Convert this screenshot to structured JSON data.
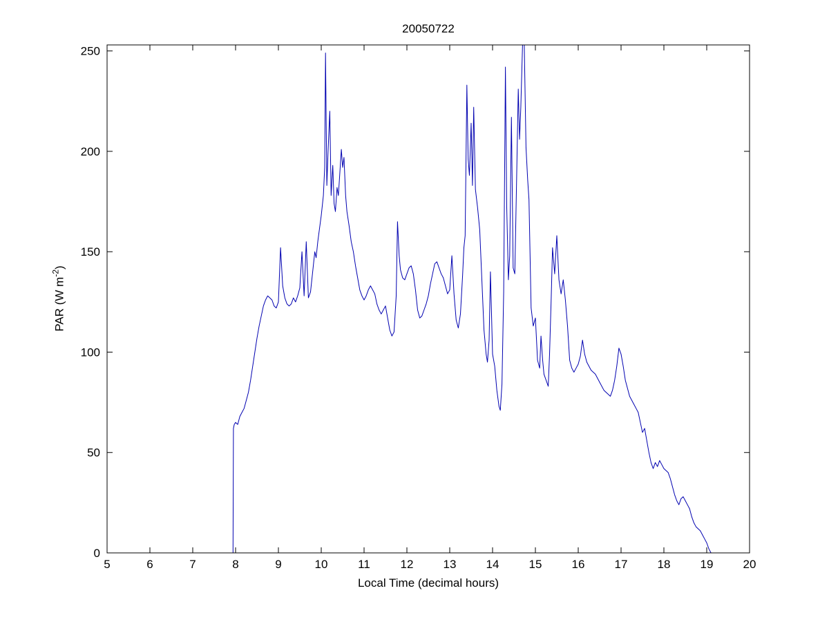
{
  "chart_data": {
    "type": "line",
    "title": "20050722",
    "xlabel": "Local Time (decimal hours)",
    "ylabel": "PAR (W m-2)",
    "ylabel_parts": {
      "main": "PAR (W m",
      "sup": "-2",
      "close": ")"
    },
    "xlim": [
      5,
      20
    ],
    "ylim": [
      0,
      253
    ],
    "xticks": [
      5,
      6,
      7,
      8,
      9,
      10,
      11,
      12,
      13,
      14,
      15,
      16,
      17,
      18,
      19,
      20
    ],
    "yticks": [
      0,
      50,
      100,
      150,
      200,
      250
    ],
    "grid": false,
    "legend": "none",
    "line_color": "#0000b0",
    "axis_color": "#000000",
    "series_name": "PAR",
    "points": [
      [
        6.25,
        0
      ],
      [
        6.4,
        0
      ],
      [
        6.6,
        0
      ],
      [
        6.8,
        0
      ],
      [
        7.0,
        0
      ],
      [
        7.2,
        0
      ],
      [
        7.4,
        0
      ],
      [
        7.6,
        0
      ],
      [
        7.8,
        0
      ],
      [
        7.9,
        0
      ],
      [
        7.94,
        0
      ],
      [
        7.95,
        62
      ],
      [
        7.97,
        64
      ],
      [
        8.0,
        65
      ],
      [
        8.05,
        64
      ],
      [
        8.1,
        68
      ],
      [
        8.15,
        70
      ],
      [
        8.2,
        72
      ],
      [
        8.25,
        76
      ],
      [
        8.3,
        80
      ],
      [
        8.35,
        86
      ],
      [
        8.4,
        93
      ],
      [
        8.45,
        100
      ],
      [
        8.5,
        107
      ],
      [
        8.55,
        113
      ],
      [
        8.6,
        118
      ],
      [
        8.65,
        123
      ],
      [
        8.7,
        126
      ],
      [
        8.75,
        128
      ],
      [
        8.8,
        127
      ],
      [
        8.85,
        126
      ],
      [
        8.9,
        123
      ],
      [
        8.95,
        122
      ],
      [
        9.0,
        125
      ],
      [
        9.05,
        152
      ],
      [
        9.1,
        133
      ],
      [
        9.15,
        127
      ],
      [
        9.2,
        124
      ],
      [
        9.25,
        123
      ],
      [
        9.3,
        124
      ],
      [
        9.35,
        127
      ],
      [
        9.4,
        125
      ],
      [
        9.45,
        128
      ],
      [
        9.5,
        132
      ],
      [
        9.55,
        150
      ],
      [
        9.6,
        128
      ],
      [
        9.65,
        155
      ],
      [
        9.7,
        127
      ],
      [
        9.75,
        130
      ],
      [
        9.8,
        140
      ],
      [
        9.85,
        150
      ],
      [
        9.88,
        147
      ],
      [
        9.92,
        155
      ],
      [
        9.95,
        160
      ],
      [
        10.0,
        168
      ],
      [
        10.05,
        178
      ],
      [
        10.08,
        192
      ],
      [
        10.1,
        249
      ],
      [
        10.13,
        183
      ],
      [
        10.16,
        200
      ],
      [
        10.2,
        220
      ],
      [
        10.23,
        178
      ],
      [
        10.27,
        193
      ],
      [
        10.3,
        174
      ],
      [
        10.33,
        170
      ],
      [
        10.37,
        182
      ],
      [
        10.4,
        178
      ],
      [
        10.43,
        188
      ],
      [
        10.47,
        201
      ],
      [
        10.5,
        192
      ],
      [
        10.53,
        197
      ],
      [
        10.57,
        178
      ],
      [
        10.6,
        170
      ],
      [
        10.65,
        163
      ],
      [
        10.7,
        155
      ],
      [
        10.75,
        150
      ],
      [
        10.8,
        143
      ],
      [
        10.85,
        137
      ],
      [
        10.9,
        131
      ],
      [
        10.95,
        128
      ],
      [
        11.0,
        126
      ],
      [
        11.05,
        128
      ],
      [
        11.1,
        131
      ],
      [
        11.15,
        133
      ],
      [
        11.2,
        131
      ],
      [
        11.25,
        129
      ],
      [
        11.3,
        124
      ],
      [
        11.35,
        121
      ],
      [
        11.4,
        119
      ],
      [
        11.45,
        121
      ],
      [
        11.5,
        123
      ],
      [
        11.55,
        117
      ],
      [
        11.6,
        111
      ],
      [
        11.65,
        108
      ],
      [
        11.7,
        110
      ],
      [
        11.75,
        128
      ],
      [
        11.78,
        165
      ],
      [
        11.82,
        148
      ],
      [
        11.85,
        141
      ],
      [
        11.9,
        137
      ],
      [
        11.95,
        136
      ],
      [
        12.0,
        139
      ],
      [
        12.05,
        142
      ],
      [
        12.1,
        143
      ],
      [
        12.15,
        139
      ],
      [
        12.2,
        131
      ],
      [
        12.25,
        121
      ],
      [
        12.3,
        117
      ],
      [
        12.35,
        118
      ],
      [
        12.4,
        121
      ],
      [
        12.45,
        124
      ],
      [
        12.5,
        128
      ],
      [
        12.55,
        134
      ],
      [
        12.6,
        139
      ],
      [
        12.65,
        144
      ],
      [
        12.7,
        145
      ],
      [
        12.75,
        142
      ],
      [
        12.8,
        139
      ],
      [
        12.85,
        137
      ],
      [
        12.9,
        133
      ],
      [
        12.95,
        129
      ],
      [
        13.0,
        131
      ],
      [
        13.05,
        148
      ],
      [
        13.1,
        129
      ],
      [
        13.15,
        116
      ],
      [
        13.2,
        112
      ],
      [
        13.25,
        119
      ],
      [
        13.3,
        138
      ],
      [
        13.33,
        152
      ],
      [
        13.36,
        158
      ],
      [
        13.4,
        233
      ],
      [
        13.43,
        196
      ],
      [
        13.46,
        188
      ],
      [
        13.5,
        214
      ],
      [
        13.53,
        183
      ],
      [
        13.56,
        222
      ],
      [
        13.6,
        181
      ],
      [
        13.65,
        172
      ],
      [
        13.7,
        161
      ],
      [
        13.75,
        136
      ],
      [
        13.8,
        111
      ],
      [
        13.85,
        99
      ],
      [
        13.88,
        95
      ],
      [
        13.92,
        106
      ],
      [
        13.95,
        140
      ],
      [
        14.0,
        99
      ],
      [
        14.05,
        93
      ],
      [
        14.1,
        81
      ],
      [
        14.15,
        73
      ],
      [
        14.18,
        71
      ],
      [
        14.22,
        84
      ],
      [
        14.26,
        130
      ],
      [
        14.3,
        242
      ],
      [
        14.33,
        172
      ],
      [
        14.37,
        136
      ],
      [
        14.4,
        148
      ],
      [
        14.44,
        217
      ],
      [
        14.48,
        142
      ],
      [
        14.52,
        139
      ],
      [
        14.56,
        184
      ],
      [
        14.6,
        231
      ],
      [
        14.63,
        206
      ],
      [
        14.66,
        222
      ],
      [
        14.7,
        256
      ],
      [
        14.74,
        256
      ],
      [
        14.78,
        202
      ],
      [
        14.82,
        186
      ],
      [
        14.85,
        176
      ],
      [
        14.9,
        122
      ],
      [
        14.95,
        113
      ],
      [
        15.0,
        117
      ],
      [
        15.05,
        96
      ],
      [
        15.1,
        92
      ],
      [
        15.13,
        108
      ],
      [
        15.17,
        96
      ],
      [
        15.2,
        89
      ],
      [
        15.25,
        86
      ],
      [
        15.3,
        83
      ],
      [
        15.33,
        99
      ],
      [
        15.37,
        127
      ],
      [
        15.4,
        152
      ],
      [
        15.45,
        139
      ],
      [
        15.5,
        158
      ],
      [
        15.55,
        136
      ],
      [
        15.6,
        129
      ],
      [
        15.65,
        136
      ],
      [
        15.7,
        126
      ],
      [
        15.75,
        113
      ],
      [
        15.8,
        96
      ],
      [
        15.85,
        92
      ],
      [
        15.9,
        90
      ],
      [
        15.95,
        92
      ],
      [
        16.0,
        94
      ],
      [
        16.05,
        98
      ],
      [
        16.1,
        106
      ],
      [
        16.15,
        99
      ],
      [
        16.2,
        95
      ],
      [
        16.3,
        91
      ],
      [
        16.4,
        89
      ],
      [
        16.5,
        85
      ],
      [
        16.6,
        81
      ],
      [
        16.7,
        79
      ],
      [
        16.75,
        78
      ],
      [
        16.8,
        81
      ],
      [
        16.85,
        86
      ],
      [
        16.9,
        93
      ],
      [
        16.95,
        102
      ],
      [
        17.0,
        99
      ],
      [
        17.05,
        93
      ],
      [
        17.1,
        86
      ],
      [
        17.2,
        78
      ],
      [
        17.3,
        74
      ],
      [
        17.35,
        72
      ],
      [
        17.4,
        70
      ],
      [
        17.45,
        65
      ],
      [
        17.5,
        60
      ],
      [
        17.55,
        62
      ],
      [
        17.6,
        56
      ],
      [
        17.65,
        50
      ],
      [
        17.7,
        45
      ],
      [
        17.75,
        42
      ],
      [
        17.8,
        45
      ],
      [
        17.85,
        43
      ],
      [
        17.9,
        46
      ],
      [
        17.95,
        44
      ],
      [
        18.0,
        42
      ],
      [
        18.05,
        41
      ],
      [
        18.1,
        40
      ],
      [
        18.15,
        37
      ],
      [
        18.2,
        33
      ],
      [
        18.25,
        29
      ],
      [
        18.3,
        26
      ],
      [
        18.35,
        24
      ],
      [
        18.4,
        27
      ],
      [
        18.45,
        28
      ],
      [
        18.5,
        26
      ],
      [
        18.55,
        24
      ],
      [
        18.6,
        22
      ],
      [
        18.65,
        18
      ],
      [
        18.7,
        15
      ],
      [
        18.75,
        13
      ],
      [
        18.8,
        12
      ],
      [
        18.85,
        11
      ],
      [
        18.9,
        9
      ],
      [
        18.95,
        7
      ],
      [
        19.0,
        5
      ],
      [
        19.05,
        2
      ],
      [
        19.1,
        0
      ]
    ]
  }
}
